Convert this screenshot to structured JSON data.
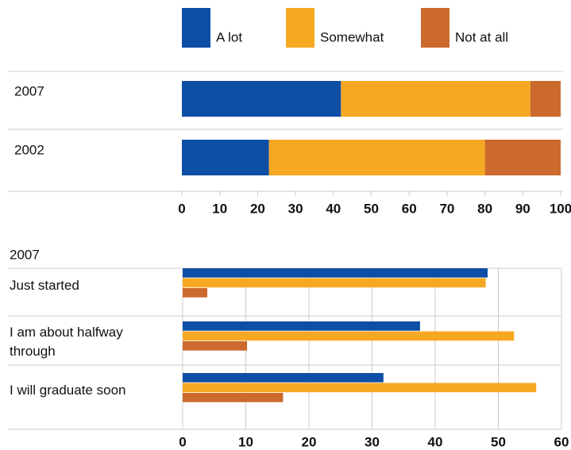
{
  "chart_data": [
    {
      "type": "stacked-bar-horizontal",
      "categories": [
        "2007",
        "2002"
      ],
      "series": [
        {
          "name": "A lot",
          "color": "#0d4ea6",
          "values": [
            42,
            23
          ]
        },
        {
          "name": "Somewhat",
          "color": "#f7a823",
          "values": [
            50,
            57
          ]
        },
        {
          "name": "Not at all",
          "color": "#cc6a2e",
          "values": [
            8,
            20
          ]
        }
      ],
      "xlim": [
        0,
        100
      ],
      "xticks": [
        0,
        10,
        20,
        30,
        40,
        50,
        60,
        70,
        80,
        90,
        100
      ]
    },
    {
      "type": "grouped-bar-horizontal",
      "title": "2007",
      "categories": [
        "Just started",
        "I am about halfway through",
        "I will graduate soon"
      ],
      "series": [
        {
          "name": "A lot",
          "color": "#0d4ea6",
          "values": [
            48.3,
            37.6,
            31.8
          ]
        },
        {
          "name": "Somewhat",
          "color": "#f7a823",
          "values": [
            48,
            52.5,
            56
          ]
        },
        {
          "name": "Not at all",
          "color": "#cc6a2e",
          "values": [
            3.9,
            10.2,
            15.9
          ]
        }
      ],
      "xlim": [
        0,
        60
      ],
      "xticks": [
        0,
        10,
        20,
        30,
        40,
        50,
        60
      ],
      "grid": true
    }
  ]
}
